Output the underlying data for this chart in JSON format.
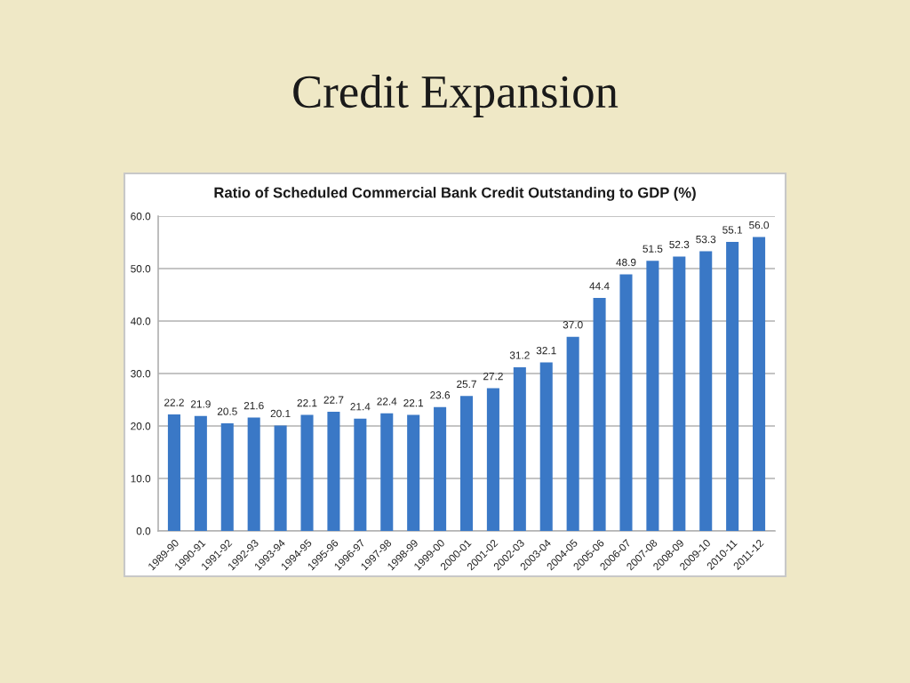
{
  "chart_data": {
    "type": "bar",
    "title": "Credit Expansion",
    "subtitle": "Ratio of Scheduled Commercial Bank Credit Outstanding to GDP (%)",
    "categories": [
      "1989-90",
      "1990-91",
      "1991-92",
      "1992-93",
      "1993-94",
      "1994-95",
      "1995-96",
      "1996-97",
      "1997-98",
      "1998-99",
      "1999-00",
      "2000-01",
      "2001-02",
      "2002-03",
      "2003-04",
      "2004-05",
      "2005-06",
      "2006-07",
      "2007-08",
      "2008-09",
      "2009-10",
      "2010-11",
      "2011-12"
    ],
    "values": [
      22.2,
      21.9,
      20.5,
      21.6,
      20.1,
      22.1,
      22.7,
      21.4,
      22.4,
      22.1,
      23.6,
      25.7,
      27.2,
      31.2,
      32.1,
      37.0,
      44.4,
      48.9,
      51.5,
      52.3,
      53.3,
      55.1,
      56.0
    ],
    "value_labels": [
      "22.2",
      "21.9",
      "20.5",
      "21.6",
      "20.1",
      "22.1",
      "22.7",
      "21.4",
      "22.4",
      "22.1",
      "23.6",
      "25.7",
      "27.2",
      "31.2",
      "32.1",
      "37.0",
      "44.4",
      "48.9",
      "51.5",
      "52.3",
      "53.3",
      "55.1",
      "56.0"
    ],
    "color": "#3a78c6",
    "ylim": [
      0,
      60
    ],
    "yticks": [
      {
        "value": 0,
        "label": "0.0"
      },
      {
        "value": 10,
        "label": "10.0"
      },
      {
        "value": 20,
        "label": "20.0"
      },
      {
        "value": 30,
        "label": "30.0"
      },
      {
        "value": 40,
        "label": "40.0"
      },
      {
        "value": 50,
        "label": "50.0"
      },
      {
        "value": 60,
        "label": "60.0"
      }
    ],
    "grid": "y"
  }
}
